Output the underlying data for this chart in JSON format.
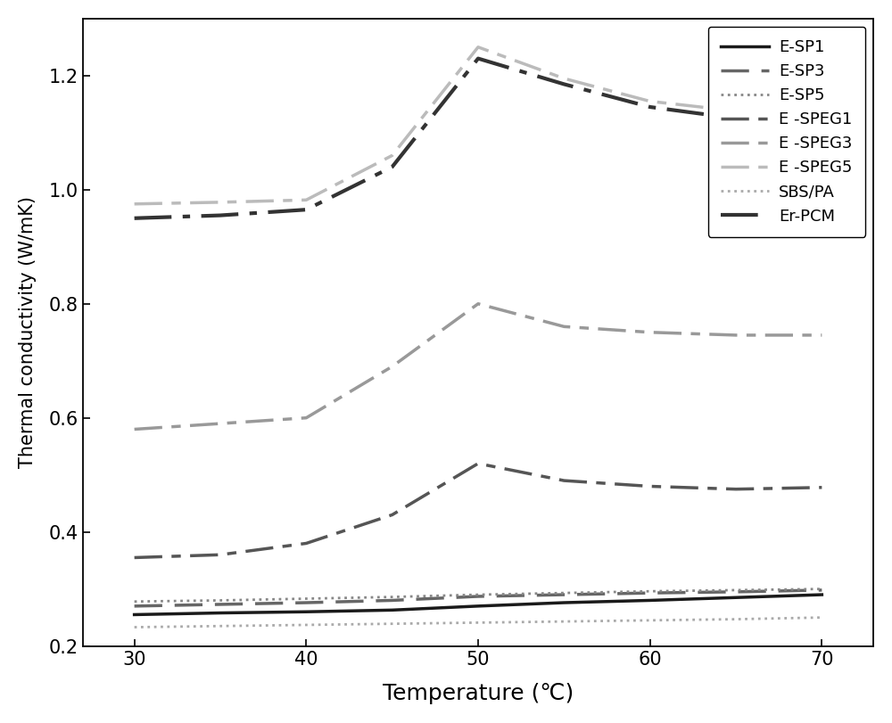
{
  "x": [
    30,
    35,
    40,
    45,
    50,
    55,
    60,
    65,
    70
  ],
  "series": {
    "E-SP1": [
      0.255,
      0.258,
      0.26,
      0.263,
      0.27,
      0.276,
      0.28,
      0.285,
      0.29
    ],
    "E-SP3": [
      0.27,
      0.273,
      0.276,
      0.28,
      0.287,
      0.29,
      0.293,
      0.295,
      0.298
    ],
    "E-SP5": [
      0.278,
      0.28,
      0.283,
      0.286,
      0.29,
      0.293,
      0.296,
      0.298,
      0.3
    ],
    "E -SPEG1": [
      0.355,
      0.36,
      0.38,
      0.43,
      0.52,
      0.49,
      0.48,
      0.475,
      0.478
    ],
    "E -SPEG3": [
      0.58,
      0.59,
      0.6,
      0.69,
      0.8,
      0.76,
      0.75,
      0.745,
      0.745
    ],
    "E -SPEG5": [
      0.975,
      0.978,
      0.982,
      1.06,
      1.25,
      1.195,
      1.155,
      1.138,
      1.125
    ],
    "SBS/PA": [
      0.233,
      0.235,
      0.237,
      0.239,
      0.241,
      0.243,
      0.245,
      0.247,
      0.25
    ],
    "Er-PCM": [
      0.95,
      0.955,
      0.965,
      1.04,
      1.23,
      1.185,
      1.145,
      1.125,
      1.115
    ]
  },
  "styles": {
    "E-SP1": {
      "color": "#1a1a1a",
      "linestyle": "solid",
      "linewidth": 2.5,
      "dashes": null
    },
    "E-SP3": {
      "color": "#666666",
      "linestyle": "dashed",
      "linewidth": 2.5,
      "dashes": [
        9,
        4
      ]
    },
    "E-SP5": {
      "color": "#888888",
      "linestyle": "dotted",
      "linewidth": 2.0,
      "dashes": null
    },
    "E -SPEG1": {
      "color": "#555555",
      "linestyle": "dashdot",
      "linewidth": 2.5,
      "dashes": [
        9,
        3,
        3,
        3
      ]
    },
    "E -SPEG3": {
      "color": "#999999",
      "linestyle": "dashdot",
      "linewidth": 2.5,
      "dashes": [
        9,
        3,
        3,
        3
      ]
    },
    "E -SPEG5": {
      "color": "#bbbbbb",
      "linestyle": "dashdot",
      "linewidth": 2.5,
      "dashes": [
        9,
        3,
        3,
        3
      ]
    },
    "SBS/PA": {
      "color": "#aaaaaa",
      "linestyle": "dotted",
      "linewidth": 2.0,
      "dashes": null
    },
    "Er-PCM": {
      "color": "#333333",
      "linestyle": "dashdot",
      "linewidth": 3.0,
      "dashes": [
        10,
        3,
        2,
        3
      ]
    }
  },
  "legend_order": [
    "E-SP1",
    "E-SP3",
    "E-SP5",
    "E -SPEG1",
    "E -SPEG3",
    "E -SPEG5",
    "SBS/PA",
    "Er-PCM"
  ],
  "xlabel": "Temperature (℃)",
  "ylabel": "Thermal conductivity (W/mK)",
  "xlim": [
    27,
    73
  ],
  "ylim": [
    0.2,
    1.3
  ],
  "xticks": [
    30,
    40,
    50,
    60,
    70
  ],
  "yticks": [
    0.2,
    0.4,
    0.6,
    0.8,
    1.0,
    1.2
  ],
  "xlabel_fontsize": 18,
  "ylabel_fontsize": 15,
  "tick_fontsize": 15,
  "legend_fontsize": 13,
  "background_color": "#ffffff"
}
